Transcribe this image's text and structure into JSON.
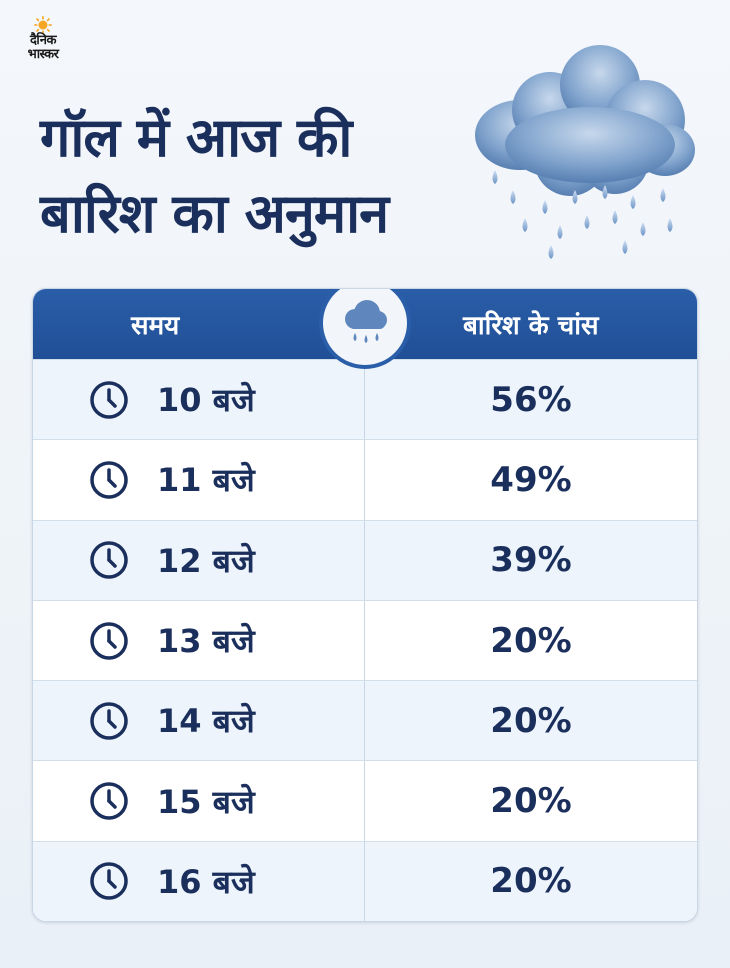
{
  "brand": {
    "line1": "दैनिक",
    "line2": "भास्कर"
  },
  "title": {
    "line1": "गॉल में आज की",
    "line2": "बारिश का अनुमान"
  },
  "table": {
    "headers": {
      "time": "समय",
      "chance": "बारिश के चांस"
    },
    "rows": [
      {
        "time": "10 बजे",
        "chance": "56%"
      },
      {
        "time": "11 बजे",
        "chance": "49%"
      },
      {
        "time": "12 बजे",
        "chance": "39%"
      },
      {
        "time": "13 बजे",
        "chance": "20%"
      },
      {
        "time": "14 बजे",
        "chance": "20%"
      },
      {
        "time": "15 बजे",
        "chance": "20%"
      },
      {
        "time": "16 बजे",
        "chance": "20%"
      }
    ]
  },
  "colors": {
    "header": "#2a5ea8",
    "text": "#1b2f5c",
    "row_alt": "#eef4fb",
    "sun": "#f5a623"
  }
}
